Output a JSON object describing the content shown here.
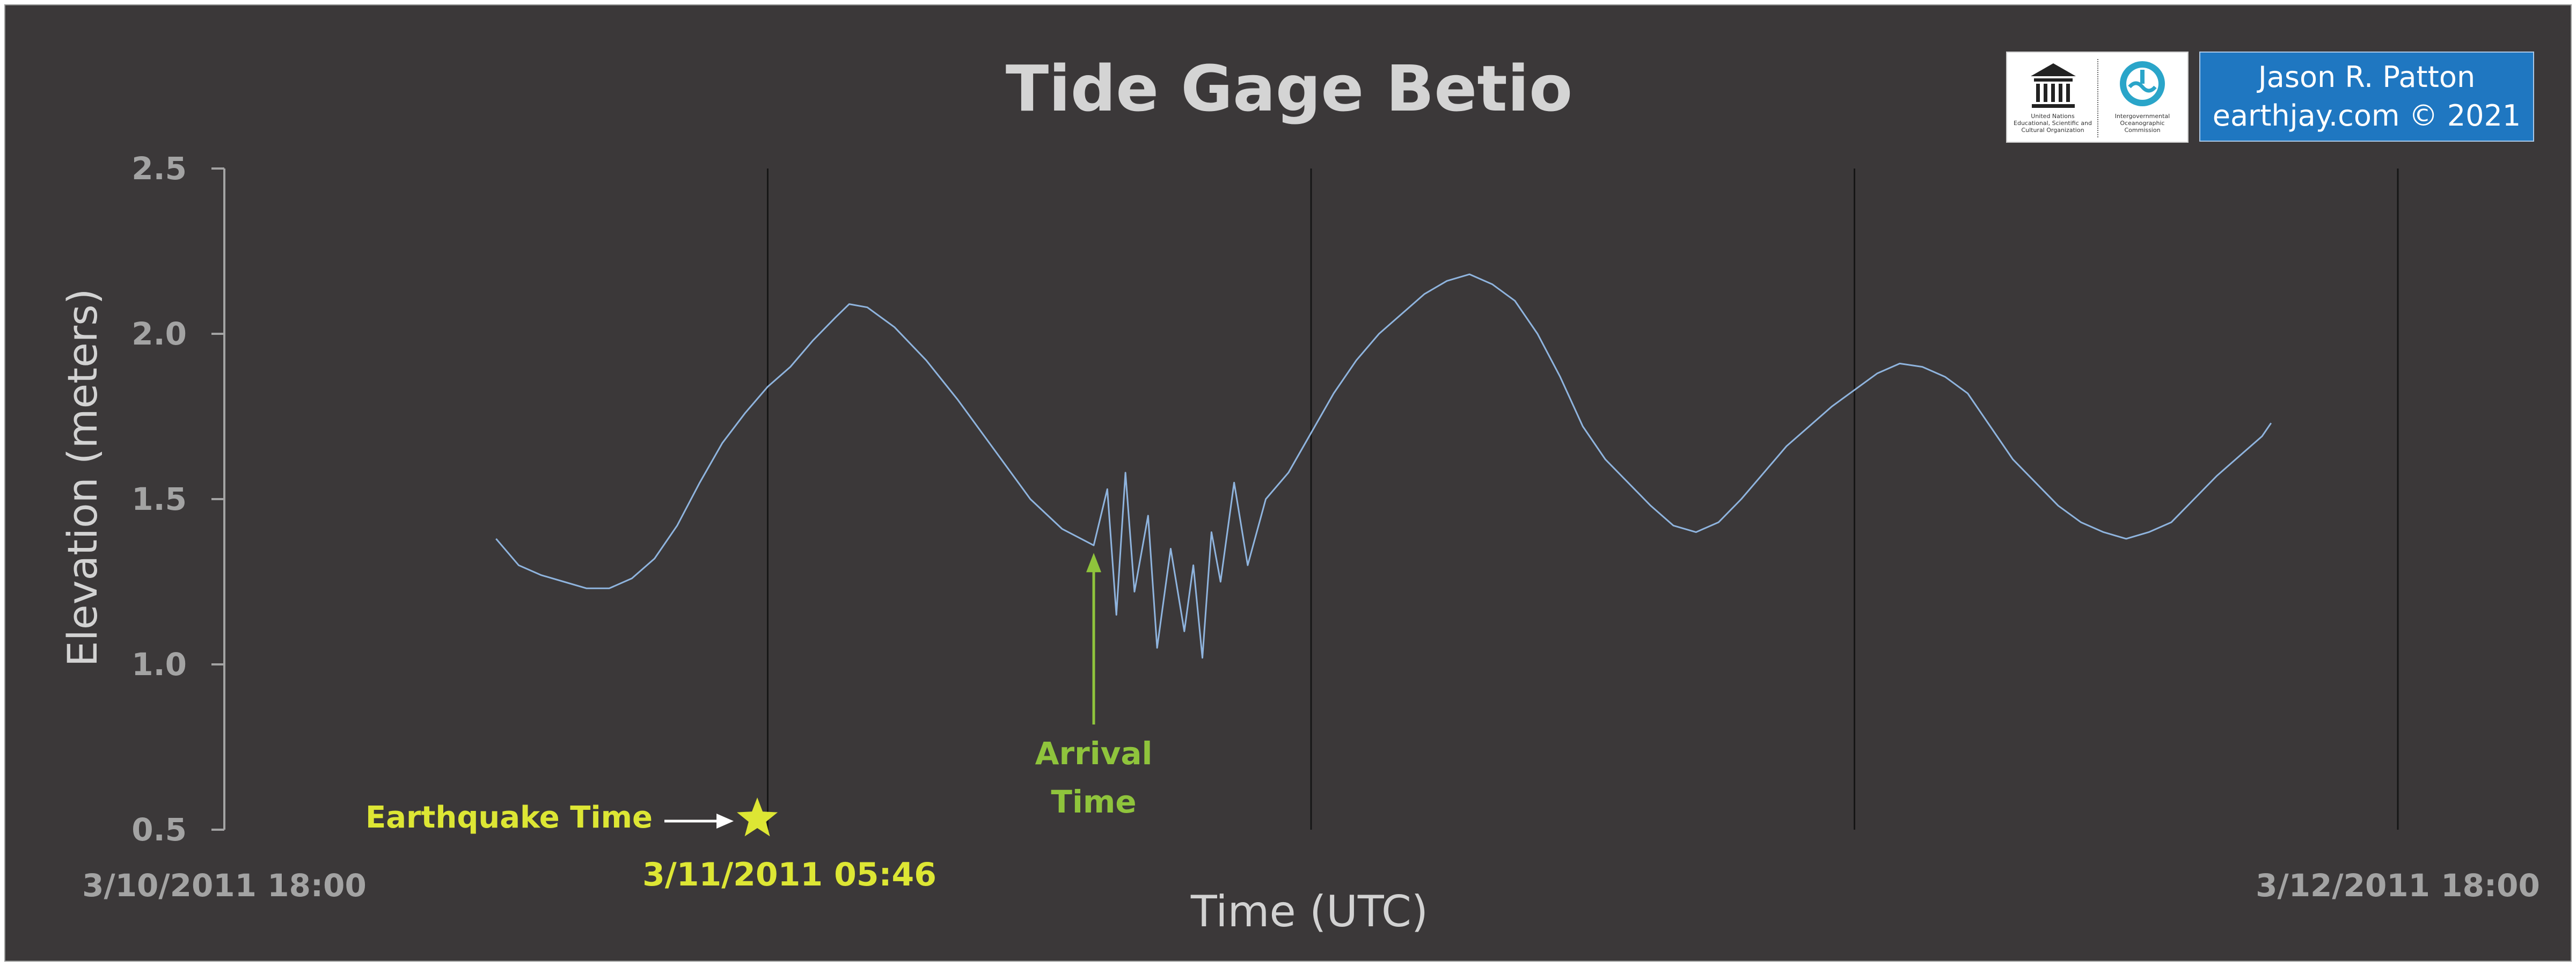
{
  "chart_data": {
    "type": "line",
    "title": "Tide Gage Betio",
    "xlabel": "Time (UTC)",
    "ylabel": "Elevation (meters)",
    "x_range": [
      "3/10/2011 18:00",
      "3/12/2011 18:00"
    ],
    "ylim": [
      0.5,
      2.5
    ],
    "y_ticks": [
      "0.5",
      "1.0",
      "1.5",
      "2.0",
      "2.5"
    ],
    "x_tick_labels": [
      "3/10/2011 18:00",
      "3/12/2011 18:00"
    ],
    "vertical_gridlines": true,
    "horizontal_gridlines": false,
    "series_color": "#8fb4de",
    "annotations": {
      "earthquake_label": "Earthquake Time",
      "earthquake_time": "3/11/2011 05:46",
      "earthquake_color": "#dde634",
      "arrival_label_line1": "Arrival",
      "arrival_label_line2": "Time",
      "arrival_color": "#8fc43c"
    },
    "series": [
      {
        "hours": [
          0,
          12,
          24,
          36,
          48
        ],
        "points": [
          [
            6.0,
            1.38
          ],
          [
            6.5,
            1.3
          ],
          [
            7.0,
            1.27
          ],
          [
            7.5,
            1.25
          ],
          [
            8.0,
            1.23
          ],
          [
            8.5,
            1.23
          ],
          [
            9.0,
            1.26
          ],
          [
            9.5,
            1.32
          ],
          [
            10.0,
            1.42
          ],
          [
            10.5,
            1.55
          ],
          [
            11.0,
            1.67
          ],
          [
            11.5,
            1.76
          ],
          [
            12.0,
            1.84
          ],
          [
            12.5,
            1.9
          ],
          [
            13.0,
            1.98
          ],
          [
            13.5,
            2.05
          ],
          [
            13.8,
            2.09
          ],
          [
            14.2,
            2.08
          ],
          [
            14.8,
            2.02
          ],
          [
            15.5,
            1.92
          ],
          [
            16.2,
            1.8
          ],
          [
            17.0,
            1.65
          ],
          [
            17.8,
            1.5
          ],
          [
            18.5,
            1.41
          ],
          [
            19.2,
            1.36
          ],
          [
            19.5,
            1.53
          ],
          [
            19.7,
            1.15
          ],
          [
            19.9,
            1.58
          ],
          [
            20.1,
            1.22
          ],
          [
            20.4,
            1.45
          ],
          [
            20.6,
            1.05
          ],
          [
            20.9,
            1.35
          ],
          [
            21.2,
            1.1
          ],
          [
            21.4,
            1.3
          ],
          [
            21.6,
            1.02
          ],
          [
            21.8,
            1.4
          ],
          [
            22.0,
            1.25
          ],
          [
            22.3,
            1.55
          ],
          [
            22.6,
            1.3
          ],
          [
            23.0,
            1.5
          ],
          [
            23.5,
            1.58
          ],
          [
            24.0,
            1.7
          ],
          [
            24.5,
            1.82
          ],
          [
            25.0,
            1.92
          ],
          [
            25.5,
            2.0
          ],
          [
            26.0,
            2.06
          ],
          [
            26.5,
            2.12
          ],
          [
            27.0,
            2.16
          ],
          [
            27.5,
            2.18
          ],
          [
            28.0,
            2.15
          ],
          [
            28.5,
            2.1
          ],
          [
            29.0,
            2.0
          ],
          [
            29.5,
            1.87
          ],
          [
            30.0,
            1.72
          ],
          [
            30.5,
            1.62
          ],
          [
            31.0,
            1.55
          ],
          [
            31.5,
            1.48
          ],
          [
            32.0,
            1.42
          ],
          [
            32.5,
            1.4
          ],
          [
            33.0,
            1.43
          ],
          [
            33.5,
            1.5
          ],
          [
            34.0,
            1.58
          ],
          [
            34.5,
            1.66
          ],
          [
            35.0,
            1.72
          ],
          [
            35.5,
            1.78
          ],
          [
            36.0,
            1.83
          ],
          [
            36.5,
            1.88
          ],
          [
            37.0,
            1.91
          ],
          [
            37.5,
            1.9
          ],
          [
            38.0,
            1.87
          ],
          [
            38.5,
            1.82
          ],
          [
            39.0,
            1.72
          ],
          [
            39.5,
            1.62
          ],
          [
            40.0,
            1.55
          ],
          [
            40.5,
            1.48
          ],
          [
            41.0,
            1.43
          ],
          [
            41.5,
            1.4
          ],
          [
            42.0,
            1.38
          ],
          [
            42.5,
            1.4
          ],
          [
            43.0,
            1.43
          ],
          [
            43.5,
            1.5
          ],
          [
            44.0,
            1.57
          ],
          [
            44.5,
            1.63
          ],
          [
            45.0,
            1.69
          ],
          [
            45.2,
            1.73
          ]
        ]
      }
    ]
  },
  "logos": {
    "unesco_text": "United Nations Educational, Scientific and Cultural Organization",
    "ioc_text": "Intergovernmental Oceanographic Commission"
  },
  "credit": {
    "line1": "Jason R. Patton",
    "line2": "earthjay.com © 2021"
  }
}
